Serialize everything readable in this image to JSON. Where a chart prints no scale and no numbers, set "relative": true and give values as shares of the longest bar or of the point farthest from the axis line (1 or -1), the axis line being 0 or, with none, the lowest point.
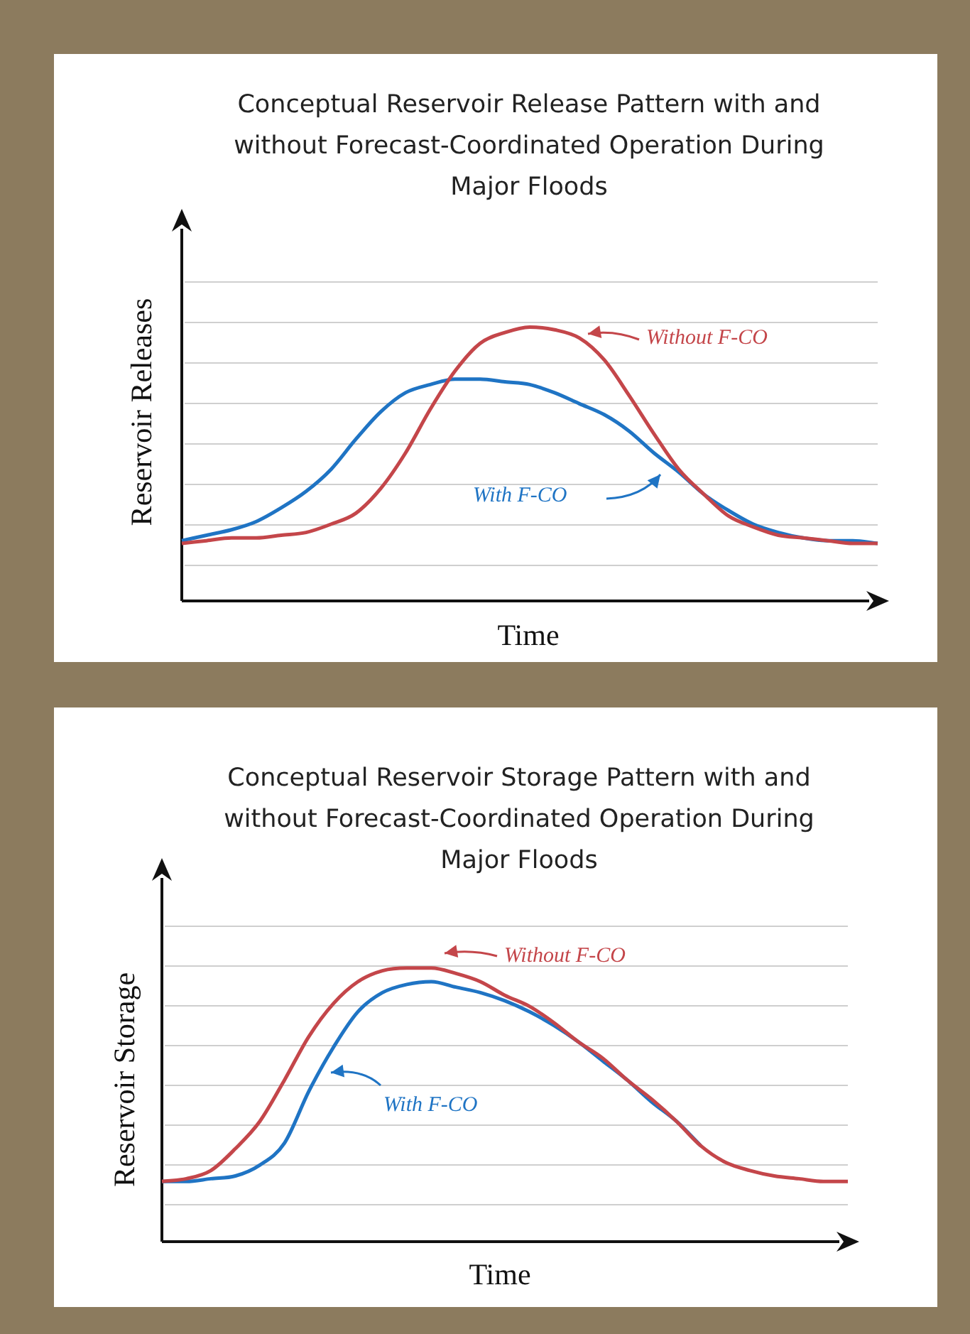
{
  "chart_data": [
    {
      "type": "line",
      "title": "Conceptual Reservoir Release Pattern with and without Forecast-Coordinated Operation During Major Floods",
      "xlabel": "Time",
      "ylabel": "Reservoir Releases",
      "relative": true,
      "grid": "y",
      "categories": [
        null,
        null,
        null,
        null,
        null,
        null,
        null,
        null,
        null,
        null,
        null,
        null,
        null,
        null,
        null,
        null,
        null,
        null,
        null,
        null,
        null,
        null,
        null,
        null,
        null,
        null,
        null,
        null,
        null
      ],
      "series": [
        {
          "name": "Without F-CO",
          "color": "#c4464a",
          "values": [
            0.21,
            0.22,
            0.23,
            0.23,
            0.24,
            0.25,
            0.28,
            0.32,
            0.41,
            0.54,
            0.7,
            0.84,
            0.94,
            0.98,
            1.0,
            0.99,
            0.96,
            0.88,
            0.75,
            0.61,
            0.48,
            0.39,
            0.31,
            0.27,
            0.24,
            0.23,
            0.22,
            0.21,
            0.21
          ]
        },
        {
          "name": "With F-CO",
          "color": "#1f74c4",
          "values": [
            0.22,
            0.24,
            0.26,
            0.29,
            0.34,
            0.4,
            0.48,
            0.59,
            0.69,
            0.76,
            0.79,
            0.81,
            0.81,
            0.8,
            0.79,
            0.76,
            0.72,
            0.68,
            0.62,
            0.54,
            0.47,
            0.39,
            0.33,
            0.28,
            0.25,
            0.23,
            0.22,
            0.22,
            0.21
          ]
        }
      ]
    },
    {
      "type": "line",
      "title": "Conceptual Reservoir Storage Pattern with and without Forecast-Coordinated Operation During Major Floods",
      "xlabel": "Time",
      "ylabel": "Reservoir Storage",
      "relative": true,
      "grid": "y",
      "categories": [
        null,
        null,
        null,
        null,
        null,
        null,
        null,
        null,
        null,
        null,
        null,
        null,
        null,
        null,
        null,
        null,
        null,
        null,
        null,
        null,
        null,
        null,
        null,
        null,
        null,
        null,
        null,
        null,
        null
      ],
      "series": [
        {
          "name": "Without F-CO",
          "color": "#c4464a",
          "values": [
            0.22,
            0.23,
            0.26,
            0.34,
            0.44,
            0.59,
            0.75,
            0.87,
            0.95,
            0.99,
            1.0,
            1.0,
            0.98,
            0.95,
            0.9,
            0.86,
            0.8,
            0.73,
            0.67,
            0.59,
            0.52,
            0.44,
            0.35,
            0.29,
            0.26,
            0.24,
            0.23,
            0.22,
            0.22
          ]
        },
        {
          "name": "With F-CO",
          "color": "#1f74c4",
          "values": [
            0.22,
            0.22,
            0.23,
            0.24,
            0.28,
            0.36,
            0.55,
            0.71,
            0.84,
            0.91,
            0.94,
            0.95,
            0.93,
            0.91,
            0.88,
            0.84,
            0.79,
            0.73,
            0.66,
            0.59,
            0.51,
            0.44,
            0.35,
            null,
            null,
            null,
            null,
            null,
            null
          ]
        }
      ]
    }
  ]
}
